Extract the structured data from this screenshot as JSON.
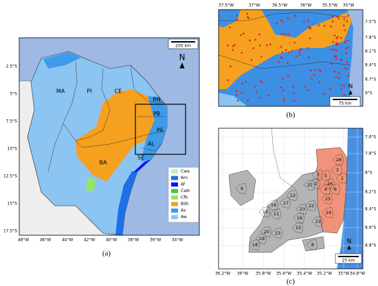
{
  "panel_a": {
    "caption": "(a)",
    "lon_ticks": [
      "48°W",
      "46°W",
      "44°W",
      "42°W",
      "40°W",
      "38°W",
      "36°W",
      "34°W"
    ],
    "lat_ticks": [
      "2.5°S",
      "5°S",
      "7.5°S",
      "10°S",
      "12.5°S",
      "15°S",
      "17.5°S"
    ],
    "state_labels": [
      "MA",
      "PI",
      "CE",
      "RN",
      "PB",
      "PE",
      "AL",
      "SE",
      "BA"
    ],
    "legend": [
      {
        "label": "Cwa",
        "color": "#b4f5b4"
      },
      {
        "label": "Am",
        "color": "#1f6fe6"
      },
      {
        "label": "Af",
        "color": "#0a14ff"
      },
      {
        "label": "Cwb",
        "color": "#4cbf3c"
      },
      {
        "label": "Cfb",
        "color": "#96e26e"
      },
      {
        "label": "BSh",
        "color": "#f5a01e"
      },
      {
        "label": "As",
        "color": "#3d9be8"
      },
      {
        "label": "Aw",
        "color": "#8cc4f2"
      }
    ],
    "scale_bar": "200 km",
    "north": "N"
  },
  "panel_b": {
    "caption": "(b)",
    "lon_ticks": [
      "37.5°W",
      "37°W",
      "36.5°W",
      "36°W",
      "35.5°W",
      "35°W"
    ],
    "lat_ticks": [
      "7.5°S",
      "7.8°S",
      "8.1°S",
      "8.4°S",
      "8.7°S",
      "9°S"
    ],
    "scale_bar": "75 km",
    "north": "N"
  },
  "panel_c": {
    "caption": "(c)",
    "lon_ticks": [
      "36.2°W",
      "36°W",
      "35.8°W",
      "35.6°W",
      "35.4°W",
      "35.2°W",
      "35°W",
      "34.8°W"
    ],
    "lat_ticks": [
      "7.6°S",
      "7.8°S",
      "8°S",
      "8.2°S",
      "8.4°S",
      "8.6°S",
      "8.8°S"
    ],
    "municipality_labels": [
      "1",
      "2",
      "3",
      "4",
      "5",
      "6",
      "7",
      "8",
      "9",
      "10",
      "11",
      "12",
      "13",
      "14",
      "15",
      "16",
      "17",
      "18",
      "19",
      "20",
      "21",
      "22",
      "23",
      "24",
      "25",
      "26",
      "27",
      "28"
    ],
    "scale_bar": "25 km",
    "north": "N"
  }
}
